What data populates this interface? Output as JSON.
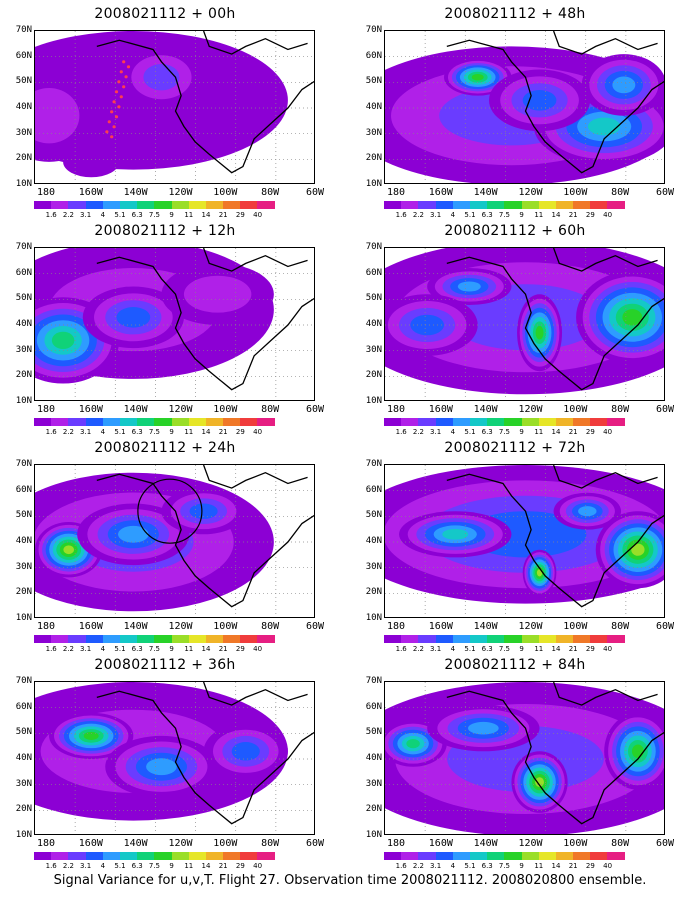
{
  "panels": [
    {
      "title": "2008021112 + 00h"
    },
    {
      "title": "2008021112 + 48h"
    },
    {
      "title": "2008021112 + 12h"
    },
    {
      "title": "2008021112 + 60h"
    },
    {
      "title": "2008021112 + 24h"
    },
    {
      "title": "2008021112 + 72h"
    },
    {
      "title": "2008021112 + 36h"
    },
    {
      "title": "2008021112 + 84h"
    }
  ],
  "lat_labels": [
    "70N",
    "60N",
    "50N",
    "40N",
    "30N",
    "20N",
    "10N"
  ],
  "lon_labels": [
    "180",
    "160W",
    "140W",
    "120W",
    "100W",
    "80W",
    "60W"
  ],
  "colorbar": {
    "colors": [
      "#8c00d4",
      "#b020e8",
      "#6a3cff",
      "#1e5aff",
      "#2e9cff",
      "#14c8c8",
      "#10d278",
      "#28d228",
      "#9ade28",
      "#e6e628",
      "#f0b428",
      "#f07828",
      "#f03c3c",
      "#e61e82"
    ],
    "labels": [
      "1.6",
      "2.2",
      "3.1",
      "4",
      "5.1",
      "6.3",
      "7.5",
      "9",
      "11",
      "14",
      "21",
      "29",
      "40"
    ]
  },
  "caption": "Signal Variance for u,v,T. Flight 27. Observation time 2008021112. 2008020800 ensemble."
}
